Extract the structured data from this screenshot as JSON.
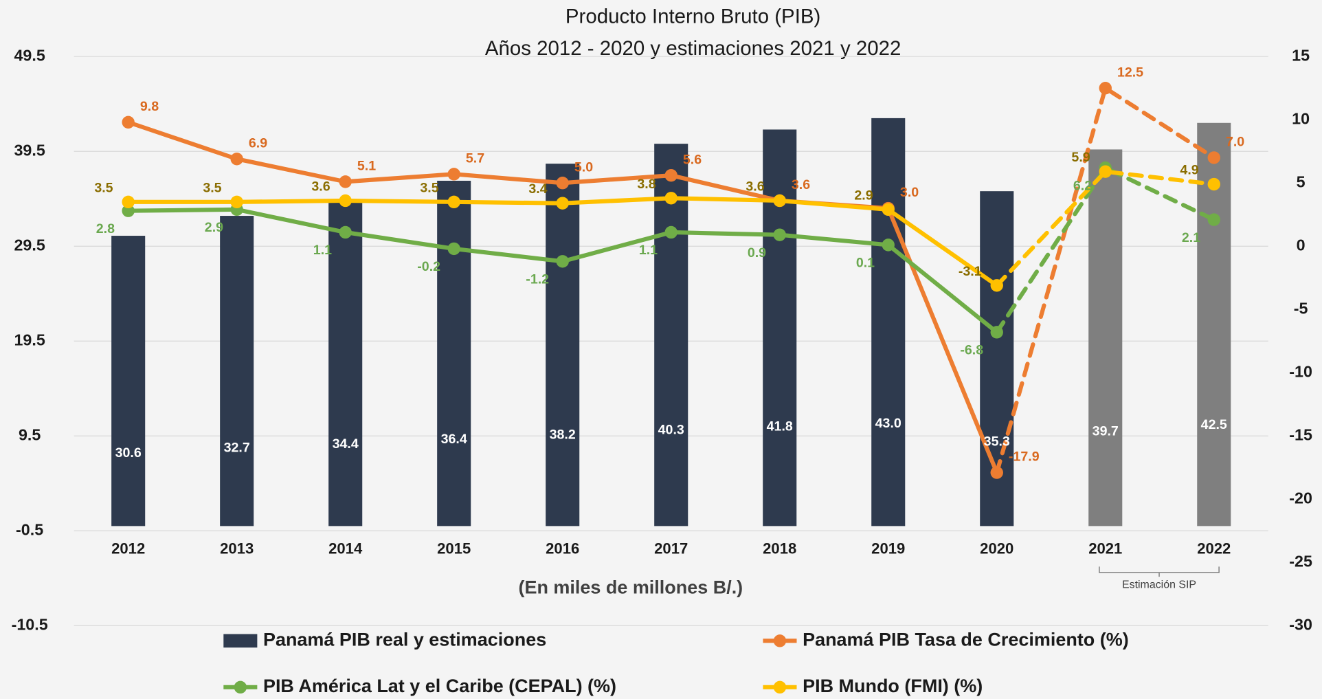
{
  "chart_data": {
    "type": "bar_line",
    "title": [
      "Producto Interno Bruto (PIB)",
      "Años 2012 - 2020 y estimaciones 2021 y 2022"
    ],
    "x_label": "(En miles de millones B/.)",
    "annotation": "Estimación SIP",
    "categories": [
      "2012",
      "2013",
      "2014",
      "2015",
      "2016",
      "2017",
      "2018",
      "2019",
      "2020",
      "2021",
      "2022"
    ],
    "dashed_from": 8,
    "series": [
      {
        "name": "Panamá PIB real y estimaciones",
        "type": "bar",
        "axis": "y",
        "color": "#2e3a4e",
        "colors": [
          "#2e3a4e",
          "#2e3a4e",
          "#2e3a4e",
          "#2e3a4e",
          "#2e3a4e",
          "#2e3a4e",
          "#2e3a4e",
          "#2e3a4e",
          "#2e3a4e",
          "#7f7f7f",
          "#7f7f7f"
        ],
        "values": [
          30.6,
          32.7,
          34.4,
          36.4,
          38.2,
          40.3,
          41.8,
          43.0,
          35.3,
          39.7,
          42.5
        ],
        "value_labels": [
          "30.6",
          "32.7",
          "34.4",
          "36.4",
          "38.2",
          "40.3",
          "41.8",
          "43.0",
          "35.3",
          "39.7",
          "42.5"
        ]
      },
      {
        "name": "Panamá PIB Tasa de Crecimiento (%)",
        "type": "line",
        "axis": "y2",
        "color": "#ed7d31",
        "label_color": "#d9691f",
        "values": [
          9.8,
          6.9,
          5.1,
          5.7,
          5.0,
          5.6,
          3.6,
          3.0,
          -17.9,
          12.5,
          7.0
        ],
        "value_labels": [
          "9.8",
          "6.9",
          "5.1",
          "5.7",
          "5.0",
          "5.6",
          "3.6",
          "3.0",
          "-17.9",
          "12.5",
          "7.0"
        ]
      },
      {
        "name": "PIB América Lat y el Caribe (CEPAL) (%)",
        "type": "line",
        "axis": "y2",
        "color": "#70ad47",
        "label_color": "#6aa84f",
        "values": [
          2.8,
          2.9,
          1.1,
          -0.2,
          -1.2,
          1.1,
          0.9,
          0.1,
          -6.8,
          6.2,
          2.1
        ]
      },
      {
        "name": "PIB Mundo (FMI) (%)",
        "type": "line",
        "axis": "y2",
        "color": "#ffc000",
        "label_color": "#8a6d00",
        "values": [
          3.5,
          3.5,
          3.6,
          3.5,
          3.4,
          3.8,
          3.6,
          2.9,
          -3.1,
          5.9,
          4.9
        ]
      }
    ],
    "ylim": [
      -10.5,
      49.5
    ],
    "yticks": [
      49.5,
      39.5,
      29.5,
      19.5,
      9.5,
      -0.5,
      -10.5
    ],
    "y2lim": [
      -30,
      15
    ],
    "y2ticks": [
      15,
      10,
      5,
      0,
      -5,
      -10,
      -15,
      -20,
      -25,
      -30
    ],
    "grid": true
  }
}
